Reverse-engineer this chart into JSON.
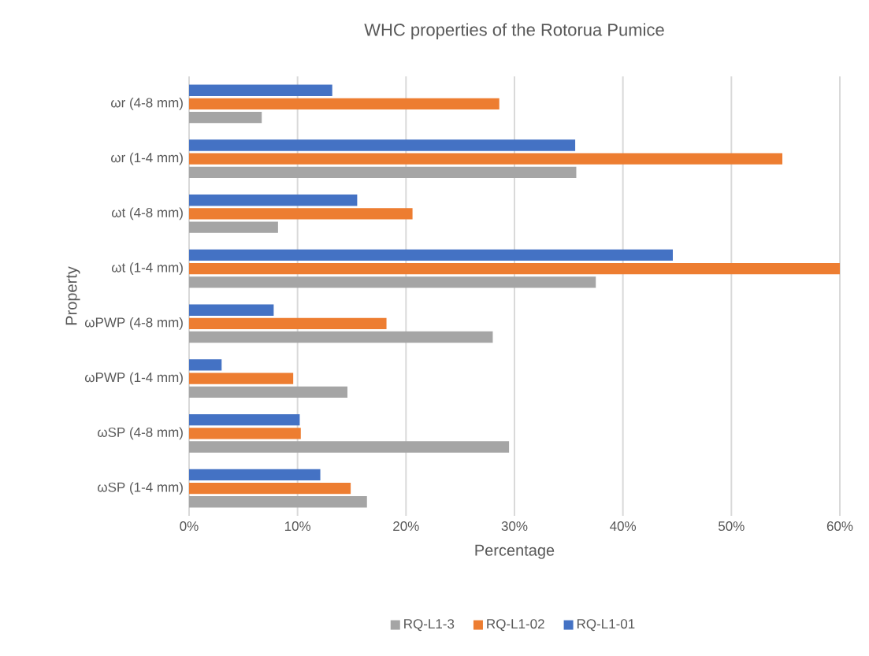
{
  "chart_data": {
    "type": "bar",
    "orientation": "horizontal",
    "title": "WHC properties of the Rotorua Pumice",
    "xlabel": "Percentage",
    "ylabel": "Property",
    "categories": [
      "ωr (4-8 mm)",
      "ωr (1-4 mm)",
      "ωt (4-8 mm)",
      "ωt (1-4 mm)",
      "ωPWP (4-8 mm)",
      "ωPWP (1-4 mm)",
      "ωSP (4-8 mm)",
      "ωSP (1-4 mm)"
    ],
    "series": [
      {
        "name": "RQ-L1-3",
        "color": "#a5a5a5",
        "values": [
          6.7,
          35.7,
          8.2,
          37.5,
          28.0,
          14.6,
          29.5,
          16.4
        ]
      },
      {
        "name": "RQ-L1-02",
        "color": "#ed7d31",
        "values": [
          28.6,
          54.7,
          20.6,
          60,
          18.2,
          9.6,
          10.3,
          14.9
        ]
      },
      {
        "name": "RQ-L1-01",
        "color": "#4472c4",
        "values": [
          13.2,
          35.6,
          15.5,
          44.6,
          7.8,
          3.0,
          10.2,
          12.1
        ]
      }
    ],
    "xlim": [
      0,
      60
    ],
    "xticks": [
      {
        "value": 0,
        "label": "0%"
      },
      {
        "value": 10,
        "label": "10%"
      },
      {
        "value": 20,
        "label": "20%"
      },
      {
        "value": 30,
        "label": "30%"
      },
      {
        "value": 40,
        "label": "40%"
      },
      {
        "value": 50,
        "label": "50%"
      },
      {
        "value": 60,
        "label": "60%"
      }
    ],
    "grid": "x",
    "legend": "bottom"
  }
}
